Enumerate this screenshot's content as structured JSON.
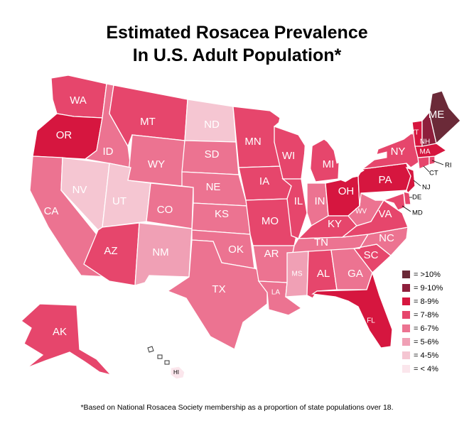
{
  "title_line1": "Estimated Rosacea Prevalence",
  "title_line2": "In U.S. Adult Population*",
  "footnote": "*Based on National Rosacea Society membership as a proportion of state populations over 18.",
  "legend": [
    {
      "label": "= >10%",
      "color": "#6b2a38"
    },
    {
      "label": "= 9-10%",
      "color": "#8e1f3c"
    },
    {
      "label": "= 8-9%",
      "color": "#d6163f"
    },
    {
      "label": "= 7-8%",
      "color": "#e6466c"
    },
    {
      "label": "= 6-7%",
      "color": "#ec7391"
    },
    {
      "label": "= 5-6%",
      "color": "#f0a0b5"
    },
    {
      "label": "= 4-5%",
      "color": "#f5c6d2"
    },
    {
      "label": "= < 4%",
      "color": "#fbe6ec"
    }
  ],
  "states": {
    "WA": {
      "label": "WA",
      "bucket": "7-8%"
    },
    "OR": {
      "label": "OR",
      "bucket": "8-9%"
    },
    "CA": {
      "label": "CA",
      "bucket": "6-7%"
    },
    "NV": {
      "label": "NV",
      "bucket": "4-5%"
    },
    "ID": {
      "label": "ID",
      "bucket": "6-7%"
    },
    "MT": {
      "label": "MT",
      "bucket": "7-8%"
    },
    "WY": {
      "label": "WY",
      "bucket": "6-7%"
    },
    "UT": {
      "label": "UT",
      "bucket": "4-5%"
    },
    "AZ": {
      "label": "AZ",
      "bucket": "7-8%"
    },
    "CO": {
      "label": "CO",
      "bucket": "6-7%"
    },
    "NM": {
      "label": "NM",
      "bucket": "5-6%"
    },
    "ND": {
      "label": "ND",
      "bucket": "4-5%"
    },
    "SD": {
      "label": "SD",
      "bucket": "6-7%"
    },
    "NE": {
      "label": "NE",
      "bucket": "6-7%"
    },
    "KS": {
      "label": "KS",
      "bucket": "6-7%"
    },
    "OK": {
      "label": "OK",
      "bucket": "6-7%"
    },
    "TX": {
      "label": "TX",
      "bucket": "6-7%"
    },
    "MN": {
      "label": "MN",
      "bucket": "7-8%"
    },
    "IA": {
      "label": "IA",
      "bucket": "7-8%"
    },
    "MO": {
      "label": "MO",
      "bucket": "7-8%"
    },
    "AR": {
      "label": "AR",
      "bucket": "6-7%"
    },
    "LA": {
      "label": "LA",
      "bucket": "6-7%"
    },
    "WI": {
      "label": "WI",
      "bucket": "7-8%"
    },
    "IL": {
      "label": "IL",
      "bucket": "7-8%"
    },
    "MI": {
      "label": "MI",
      "bucket": "7-8%"
    },
    "IN": {
      "label": "IN",
      "bucket": "6-7%"
    },
    "OH": {
      "label": "OH",
      "bucket": "8-9%"
    },
    "KY": {
      "label": "KY",
      "bucket": "7-8%"
    },
    "TN": {
      "label": "TN",
      "bucket": "6-7%"
    },
    "MS": {
      "label": "MS",
      "bucket": "5-6%"
    },
    "AL": {
      "label": "AL",
      "bucket": "7-8%"
    },
    "GA": {
      "label": "GA",
      "bucket": "6-7%"
    },
    "FL": {
      "label": "FL",
      "bucket": "8-9%"
    },
    "SC": {
      "label": "SC",
      "bucket": "7-8%"
    },
    "NC": {
      "label": "NC",
      "bucket": "6-7%"
    },
    "VA": {
      "label": "VA",
      "bucket": "7-8%"
    },
    "WV": {
      "label": "WV",
      "bucket": "6-7%"
    },
    "PA": {
      "label": "PA",
      "bucket": "8-9%"
    },
    "NY": {
      "label": "NY",
      "bucket": "7-8%"
    },
    "VT": {
      "label": "VT",
      "bucket": "8-9%"
    },
    "NH": {
      "label": "NH",
      "bucket": "9-10%"
    },
    "ME": {
      "label": "ME",
      "bucket": ">10%"
    },
    "MA": {
      "label": "MA",
      "bucket": "8-9%"
    },
    "RI": {
      "label": "RI",
      "bucket": "7-8%"
    },
    "CT": {
      "label": "CT",
      "bucket": "7-8%"
    },
    "NJ": {
      "label": "NJ",
      "bucket": "8-9%"
    },
    "DE": {
      "label": "DE",
      "bucket": "7-8%"
    },
    "MD": {
      "label": "MD",
      "bucket": "7-8%"
    },
    "AK": {
      "label": "AK",
      "bucket": "7-8%"
    },
    "HI": {
      "label": "HI",
      "bucket": "< 4%"
    }
  },
  "bucket_colors": {
    ">10%": "#6b2a38",
    "9-10%": "#8e1f3c",
    "8-9%": "#d6163f",
    "7-8%": "#e6466c",
    "6-7%": "#ec7391",
    "5-6%": "#f0a0b5",
    "4-5%": "#f5c6d2",
    "< 4%": "#fbe6ec"
  }
}
